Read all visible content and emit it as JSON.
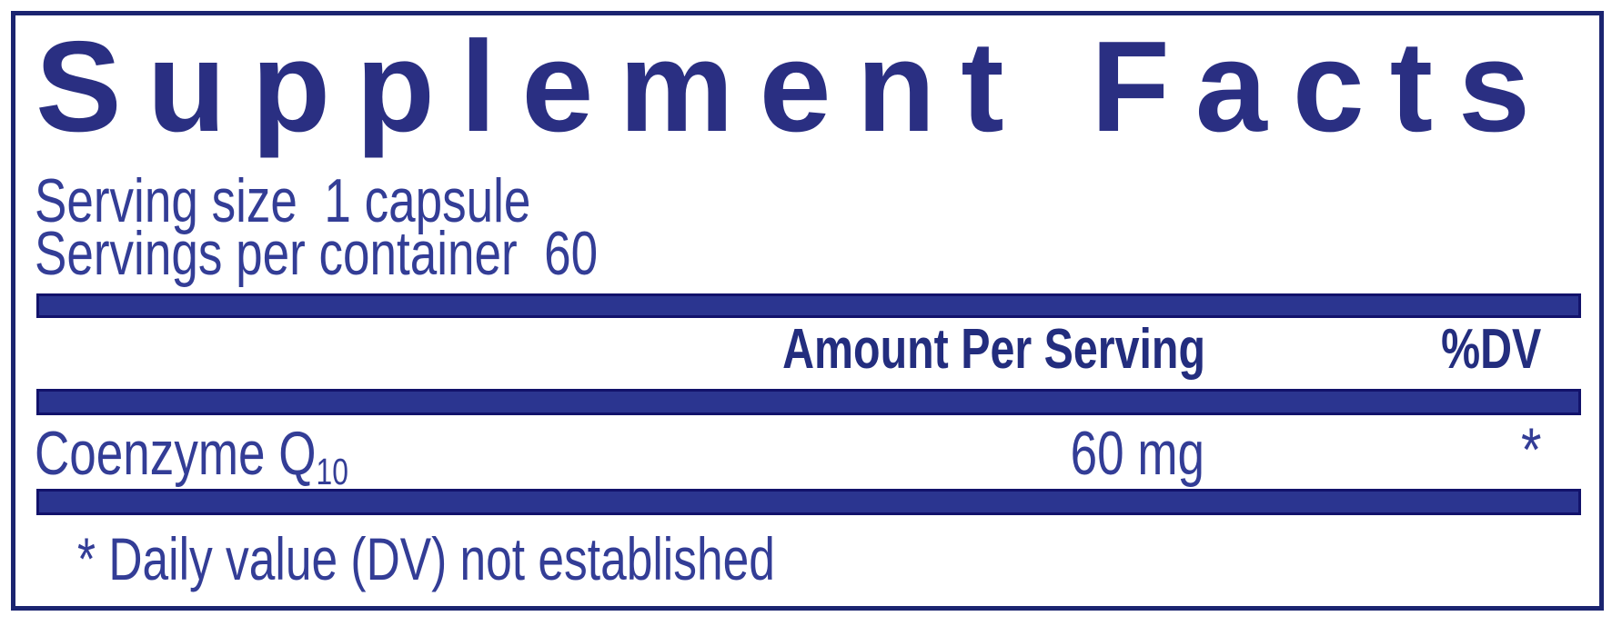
{
  "panel": {
    "title": "Supplement Facts",
    "serving_size_line": "Serving size  1 capsule",
    "servings_per_container_line": "Servings per container  60",
    "header": {
      "amount_label": "Amount Per Serving",
      "dv_label": "%DV"
    },
    "rows": [
      {
        "name": "Coenzyme Q",
        "name_subscript": "10",
        "amount": "60 mg",
        "dv": "*"
      }
    ],
    "footnote": "* Daily value (DV) not established",
    "colors": {
      "panel_border": "#1b2470",
      "bar_fill": "#2b3590",
      "bar_edge": "#12126b",
      "title_text": "#2a2f82",
      "body_text": "#333d96",
      "header_text": "#232d7e",
      "background": "#ffffff"
    }
  }
}
